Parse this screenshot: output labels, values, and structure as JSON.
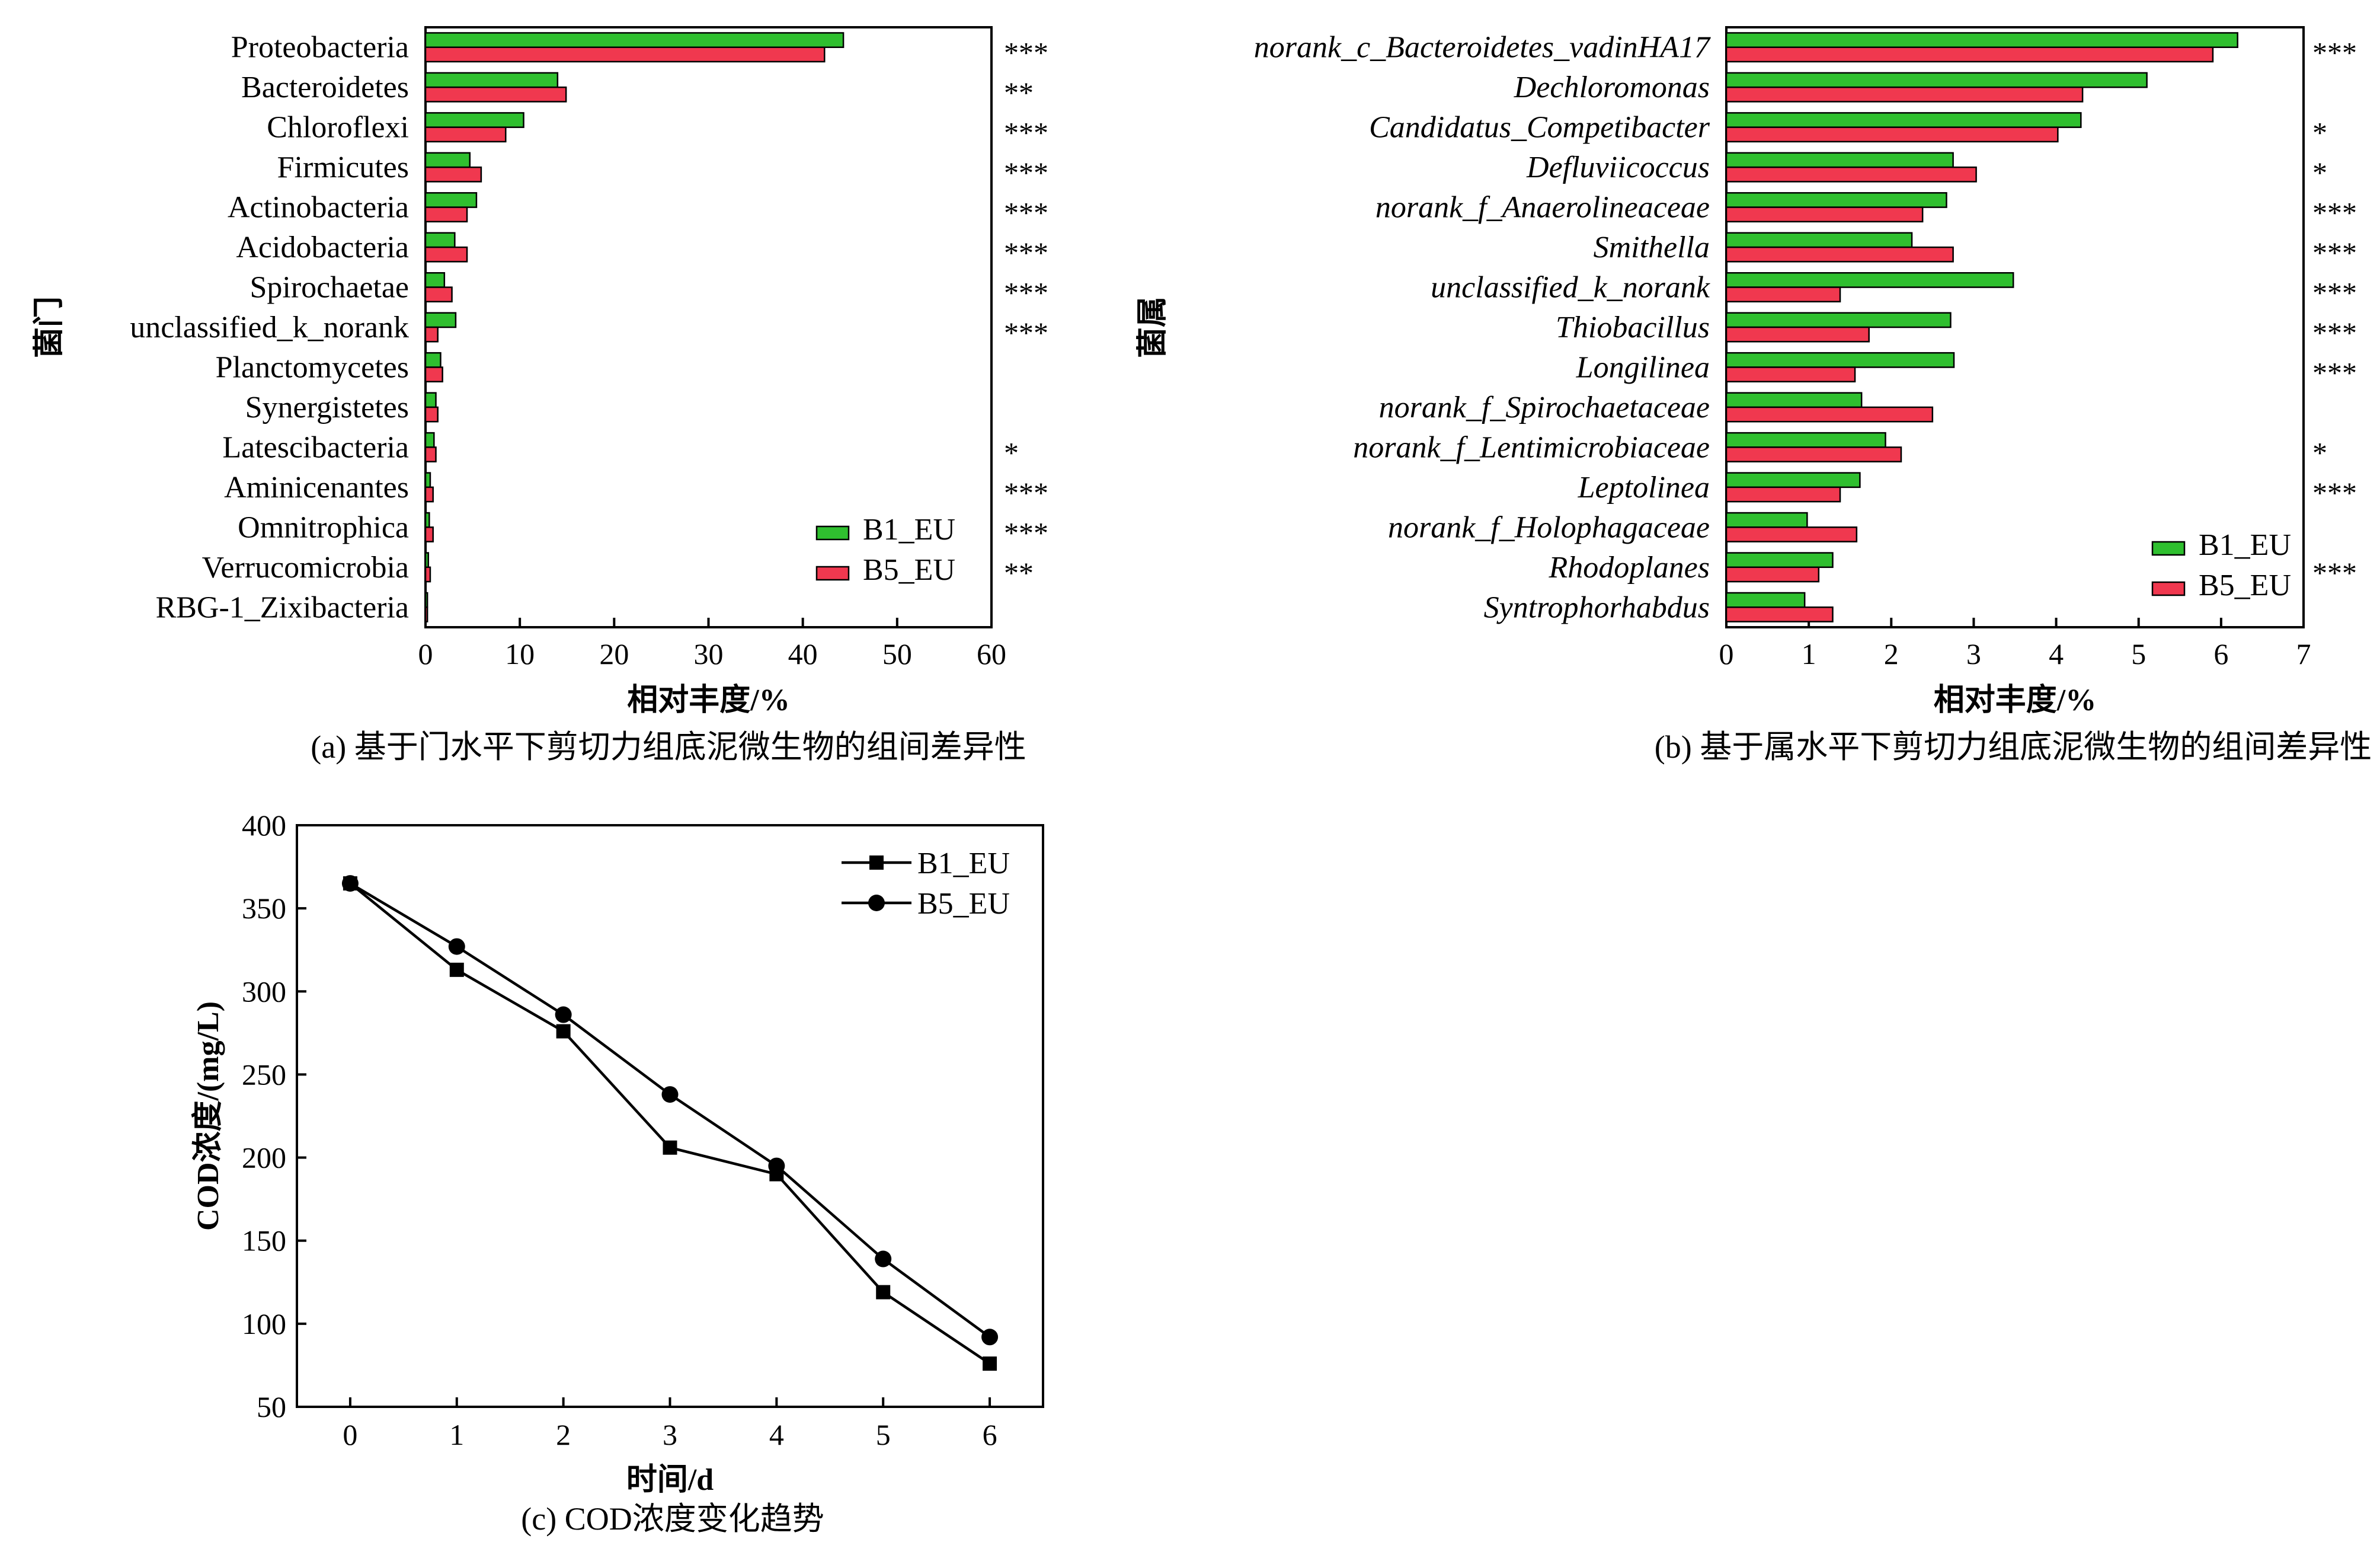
{
  "chart_data": [
    {
      "id": "a",
      "type": "bar",
      "orientation": "horizontal",
      "caption": "(a)  基于门水平下剪切力组底泥微生物的组间差异性",
      "xlabel": "相对丰度/%",
      "ylabel": "菌门",
      "xlim": [
        0,
        60
      ],
      "xticks": [
        0,
        10,
        20,
        30,
        40,
        50,
        60
      ],
      "categories": [
        "Proteobacteria",
        "Bacteroidetes",
        "Chloroflexi",
        "Firmicutes",
        "Actinobacteria",
        "Acidobacteria",
        "Spirochaetae",
        "unclassified_k_norank",
        "Planctomycetes",
        "Synergistetes",
        "Latescibacteria",
        "Aminicenantes",
        "Omnitrophica",
        "Verrucomicrobia",
        "RBG-1_Zixibacteria"
      ],
      "series": [
        {
          "name": "B1_EU",
          "color": "#2fbf2f",
          "values": [
            44.3,
            14.0,
            10.4,
            4.7,
            5.4,
            3.1,
            2.0,
            3.2,
            1.6,
            1.1,
            0.9,
            0.5,
            0.4,
            0.3,
            0.2
          ]
        },
        {
          "name": "B5_EU",
          "color": "#f0384f",
          "values": [
            42.3,
            14.9,
            8.5,
            5.9,
            4.4,
            4.4,
            2.8,
            1.3,
            1.8,
            1.3,
            1.1,
            0.8,
            0.8,
            0.5,
            0.2
          ]
        }
      ],
      "significance": [
        "***",
        "**",
        "***",
        "***",
        "***",
        "***",
        "***",
        "***",
        "",
        "",
        "*",
        "***",
        "***",
        "**",
        ""
      ],
      "legend_position": "bottom-right",
      "category_italic": false
    },
    {
      "id": "b",
      "type": "bar",
      "orientation": "horizontal",
      "caption": "(b)  基于属水平下剪切力组底泥微生物的组间差异性",
      "xlabel": "相对丰度/%",
      "ylabel": "菌属",
      "xlim": [
        0,
        7
      ],
      "xticks": [
        0,
        1,
        2,
        3,
        4,
        5,
        6,
        7
      ],
      "categories": [
        "norank_c_Bacteroidetes_vadinHA17",
        "Dechloromonas",
        "Candidatus_Competibacter",
        "Defluviicoccus",
        "norank_f_Anaerolineaceae",
        "Smithella",
        "unclassified_k_norank",
        "Thiobacillus",
        "Longilinea",
        "norank_f_Spirochaetaceae",
        "norank_f_Lentimicrobiaceae",
        "Leptolinea",
        "norank_f_Holophagaceae",
        "Rhodoplanes",
        "Syntrophorhabdus"
      ],
      "series": [
        {
          "name": "B1_EU",
          "color": "#2fbf2f",
          "values": [
            6.2,
            5.1,
            4.3,
            2.75,
            2.67,
            2.25,
            3.48,
            2.72,
            2.76,
            1.64,
            1.93,
            1.62,
            0.98,
            1.29,
            0.95
          ]
        },
        {
          "name": "B5_EU",
          "color": "#f0384f",
          "values": [
            5.9,
            4.32,
            4.02,
            3.03,
            2.38,
            2.75,
            1.38,
            1.73,
            1.56,
            2.5,
            2.12,
            1.38,
            1.58,
            1.12,
            1.29
          ]
        }
      ],
      "significance": [
        "***",
        "",
        "*",
        "*",
        "***",
        "***",
        "***",
        "***",
        "***",
        "",
        "*",
        "***",
        "",
        "***",
        ""
      ],
      "legend_position": "bottom-right",
      "category_italic": true
    },
    {
      "id": "c",
      "type": "line",
      "caption": "(c)  COD浓度变化趋势",
      "xlabel": "时间/d",
      "ylabel": "COD浓度/(mg/L)",
      "xlim": [
        -0.5,
        6.5
      ],
      "ylim": [
        50,
        400
      ],
      "xticks": [
        0,
        1,
        2,
        3,
        4,
        5,
        6
      ],
      "yticks": [
        50,
        100,
        150,
        200,
        250,
        300,
        350,
        400
      ],
      "x": [
        0,
        1,
        2,
        3,
        4,
        5,
        6
      ],
      "series": [
        {
          "name": "B1_EU",
          "marker": "square",
          "values": [
            365,
            313,
            276,
            206,
            190,
            119,
            76
          ]
        },
        {
          "name": "B5_EU",
          "marker": "circle",
          "values": [
            365,
            327,
            286,
            238,
            195,
            139,
            92
          ]
        }
      ],
      "legend_position": "top-right"
    }
  ]
}
